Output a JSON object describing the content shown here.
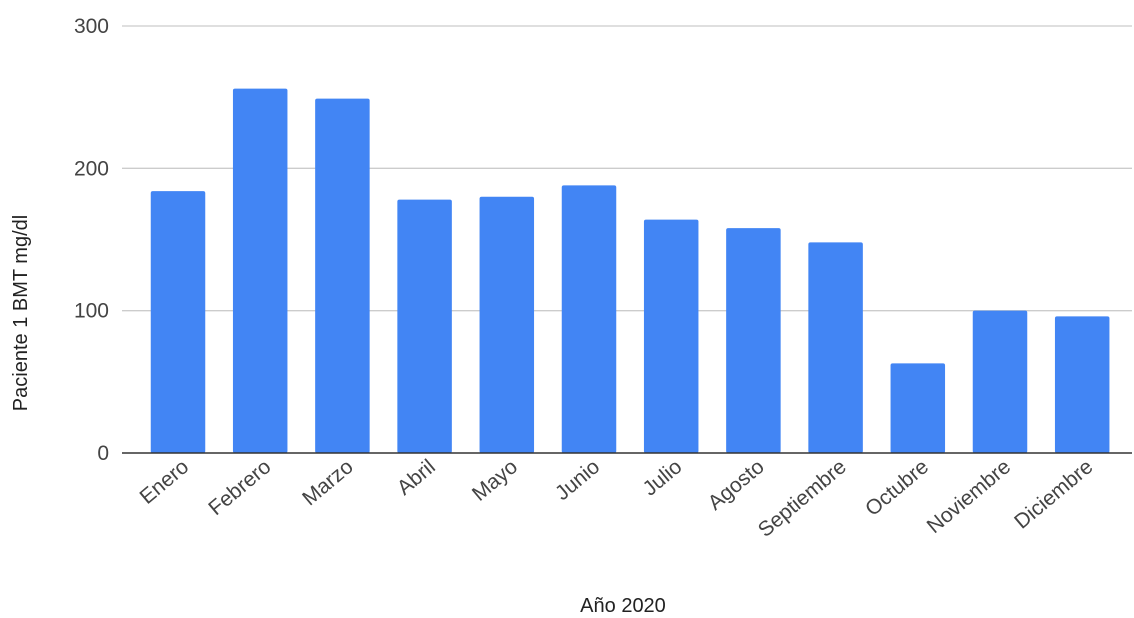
{
  "chart_data": {
    "type": "bar",
    "categories": [
      "Enero",
      "Febrero",
      "Marzo",
      "Abril",
      "Mayo",
      "Junio",
      "Julio",
      "Agosto",
      "Septiembre",
      "Octubre",
      "Noviembre",
      "Diciembre"
    ],
    "values": [
      184,
      256,
      249,
      178,
      180,
      188,
      164,
      158,
      148,
      63,
      100,
      96
    ],
    "title": "",
    "xlabel": "Año 2020",
    "ylabel": "Paciente 1 BMT mg/dl",
    "ylim": [
      0,
      300
    ],
    "yticks": [
      0,
      100,
      200,
      300
    ],
    "grid": true,
    "legend": "none",
    "bar_color": "#4285f4",
    "grid_color": "#cccccc",
    "baseline_color": "#333333"
  }
}
